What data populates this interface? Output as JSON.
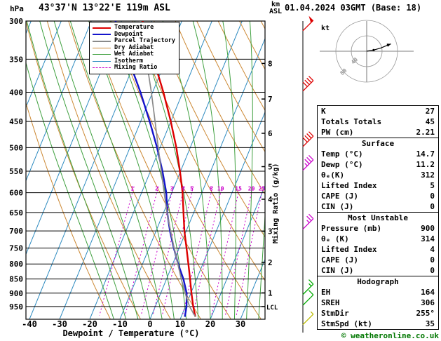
{
  "header": {
    "pressure_unit": "hPa",
    "station": "43°37'N 13°22'E 119m ASL",
    "km_line1": "km",
    "km_line2": "ASL",
    "datetime": "01.04.2024 03GMT (Base: 18)"
  },
  "axes": {
    "pressure_ticks": [
      300,
      350,
      400,
      450,
      500,
      550,
      600,
      650,
      700,
      750,
      800,
      850,
      900,
      950
    ],
    "temp_ticks": [
      -40,
      -30,
      -20,
      -10,
      0,
      10,
      20,
      30
    ],
    "xlabel": "Dewpoint / Temperature (°C)",
    "km_ticks": [
      8,
      7,
      6,
      5,
      4,
      3,
      2,
      1
    ],
    "lcl_label": "LCL",
    "mixing_axis_label": "Mixing Ratio (g/kg)",
    "mixing_ratio_values": [
      1,
      2,
      3,
      4,
      5,
      8,
      10,
      15,
      20,
      25
    ]
  },
  "style": {
    "isotherm": "#2e8bc0",
    "dry_adiabat": "#cc8833",
    "wet_adiabat": "#3fa03f",
    "mixing_ratio": "#cc00cc"
  },
  "legend": [
    {
      "label": "Temperature",
      "color": "#dd0000",
      "w": 2,
      "dash": false
    },
    {
      "label": "Dewpoint",
      "color": "#1414cc",
      "w": 2,
      "dash": false
    },
    {
      "label": "Parcel Trajectory",
      "color": "#8a8a8a",
      "w": 2,
      "dash": false
    },
    {
      "label": "Dry Adiabat",
      "color": "#cc8833",
      "w": 1,
      "dash": false
    },
    {
      "label": "Wet Adiabat",
      "color": "#3fa03f",
      "w": 1,
      "dash": false
    },
    {
      "label": "Isotherm",
      "color": "#2e8bc0",
      "w": 1,
      "dash": false
    },
    {
      "label": "Mixing Ratio",
      "color": "#cc00cc",
      "w": 1,
      "dash": true
    }
  ],
  "hodograph": {
    "unit_label": "kt",
    "rings_kt": [
      40,
      80
    ],
    "ring_labels": [
      "40",
      "80"
    ],
    "trace_kt": [
      [
        0,
        0
      ],
      [
        18,
        3
      ],
      [
        36,
        8
      ],
      [
        55,
        16
      ]
    ],
    "dots_kt": [
      [
        18,
        3
      ],
      [
        55,
        16
      ]
    ],
    "arrow_kt": [
      63,
      19
    ]
  },
  "stats": {
    "top": [
      [
        "K",
        "27"
      ],
      [
        "Totals Totals",
        "45"
      ],
      [
        "PW (cm)",
        "2.21"
      ]
    ],
    "sections": [
      {
        "title": "Surface",
        "rows": [
          [
            "Temp (°C)",
            "14.7"
          ],
          [
            "Dewp (°C)",
            "11.2"
          ],
          [
            "θₑ(K)",
            "312"
          ],
          [
            "Lifted Index",
            "5"
          ],
          [
            "CAPE (J)",
            "0"
          ],
          [
            "CIN (J)",
            "0"
          ]
        ]
      },
      {
        "title": "Most Unstable",
        "rows": [
          [
            "Pressure (mb)",
            "900"
          ],
          [
            "θₑ (K)",
            "314"
          ],
          [
            "Lifted Index",
            "4"
          ],
          [
            "CAPE (J)",
            "0"
          ],
          [
            "CIN (J)",
            "0"
          ]
        ]
      },
      {
        "title": "Hodograph",
        "rows": [
          [
            "EH",
            "164"
          ],
          [
            "SREH",
            "306"
          ],
          [
            "StmDir",
            "255°"
          ],
          [
            "StmSpd (kt)",
            "35"
          ]
        ]
      }
    ]
  },
  "footer": {
    "copyright": "© weatheronline.co.uk",
    "color": "#007700"
  },
  "chart_data": {
    "type": "line",
    "title": "Skew-T log-P sounding",
    "x_axis": {
      "label": "Dewpoint / Temperature (°C)",
      "ticks": [
        -40,
        -30,
        -20,
        -10,
        0,
        10,
        20,
        30
      ]
    },
    "y_axis": {
      "label": "hPa",
      "scale": "log",
      "range": [
        300,
        1000
      ],
      "ticks": [
        300,
        350,
        400,
        450,
        500,
        550,
        600,
        650,
        700,
        750,
        800,
        850,
        900,
        950
      ]
    },
    "secondary_y_axis": {
      "label": "km ASL",
      "ticks": [
        8,
        7,
        6,
        5,
        4,
        3,
        2,
        1
      ],
      "lcl_pressure_hpa": 950
    },
    "mixing_ratio_lines_g_per_kg": [
      1,
      2,
      3,
      4,
      5,
      8,
      10,
      15,
      20,
      25
    ],
    "series": [
      {
        "name": "Temperature",
        "color": "#dd0000",
        "points": [
          [
            990,
            14.7
          ],
          [
            950,
            12.6
          ],
          [
            900,
            10.2
          ],
          [
            850,
            7.8
          ],
          [
            800,
            5.2
          ],
          [
            750,
            2.4
          ],
          [
            700,
            -0.6
          ],
          [
            650,
            -3.4
          ],
          [
            600,
            -6.4
          ],
          [
            550,
            -10.2
          ],
          [
            500,
            -14.6
          ],
          [
            450,
            -20.0
          ],
          [
            400,
            -26.4
          ],
          [
            350,
            -34.2
          ],
          [
            300,
            -43.0
          ]
        ]
      },
      {
        "name": "Dewpoint",
        "color": "#1414cc",
        "points": [
          [
            990,
            11.2
          ],
          [
            950,
            10.4
          ],
          [
            900,
            8.6
          ],
          [
            850,
            5.6
          ],
          [
            800,
            1.8
          ],
          [
            750,
            -1.8
          ],
          [
            700,
            -5.4
          ],
          [
            650,
            -8.8
          ],
          [
            600,
            -11.8
          ],
          [
            550,
            -16.0
          ],
          [
            500,
            -21.0
          ],
          [
            450,
            -27.0
          ],
          [
            400,
            -34.0
          ],
          [
            350,
            -42.5
          ],
          [
            300,
            -52.0
          ]
        ]
      },
      {
        "name": "Parcel Trajectory",
        "color": "#8a8a8a",
        "points": [
          [
            990,
            14.7
          ],
          [
            950,
            11.4
          ],
          [
            900,
            8.1
          ],
          [
            850,
            4.9
          ],
          [
            800,
            1.7
          ],
          [
            750,
            -1.7
          ],
          [
            700,
            -5.2
          ],
          [
            650,
            -8.9
          ],
          [
            600,
            -12.5
          ],
          [
            550,
            -16.4
          ],
          [
            500,
            -20.6
          ],
          [
            450,
            -25.2
          ],
          [
            400,
            -30.4
          ],
          [
            350,
            -36.6
          ],
          [
            300,
            -43.8
          ]
        ]
      }
    ],
    "wind_barbs": [
      {
        "pressure_hpa": 312,
        "speed_kt": 50,
        "color": "#dd0000"
      },
      {
        "pressure_hpa": 398,
        "speed_kt": 40,
        "color": "#dd0000"
      },
      {
        "pressure_hpa": 498,
        "speed_kt": 40,
        "color": "#dd0000"
      },
      {
        "pressure_hpa": 548,
        "speed_kt": 35,
        "color": "#cc00cc"
      },
      {
        "pressure_hpa": 695,
        "speed_kt": 25,
        "color": "#cc00cc"
      },
      {
        "pressure_hpa": 905,
        "speed_kt": 15,
        "color": "#00aa00"
      },
      {
        "pressure_hpa": 945,
        "speed_kt": 10,
        "color": "#00aa00"
      },
      {
        "pressure_hpa": 1022,
        "speed_kt": 5,
        "color": "#bbbb00"
      }
    ]
  }
}
